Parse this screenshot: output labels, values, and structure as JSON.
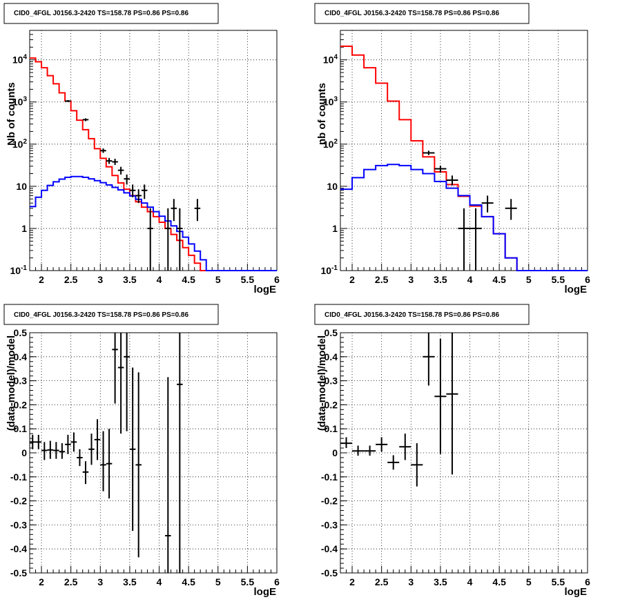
{
  "chart_data": [
    {
      "type": "histogram",
      "title": "CID0_4FGL J0156.3-2420 TS=158.78 PS=0.86 PS=0.86",
      "xlabel": "logE",
      "ylabel": "Nb of counts",
      "xlim": [
        1.8,
        6.0
      ],
      "ylim": [
        0.1,
        50000
      ],
      "log_y": true,
      "grid": true,
      "x_tick_labels": [
        "2",
        "2.5",
        "3",
        "3.5",
        "4",
        "4.5",
        "5",
        "5.5",
        "6"
      ],
      "y_tick_labels": [
        "10^-1",
        "1",
        "10",
        "10^2",
        "10^3",
        "10^4"
      ],
      "bin_edges": [
        1.8,
        1.9,
        2.0,
        2.1,
        2.2,
        2.3,
        2.4,
        2.5,
        2.6,
        2.7,
        2.8,
        2.9,
        3.0,
        3.1,
        3.2,
        3.3,
        3.4,
        3.5,
        3.6,
        3.7,
        3.8,
        3.9,
        4.0,
        4.1,
        4.2,
        4.3,
        4.4,
        4.5,
        4.6,
        4.7,
        4.8,
        4.9,
        5.0,
        5.1,
        5.2,
        5.3,
        5.4,
        5.5,
        5.6,
        5.7,
        5.8,
        5.9,
        6.0
      ],
      "series": [
        {
          "color": "#ff0000",
          "values": [
            11000,
            9000,
            6500,
            4200,
            2700,
            1650,
            1050,
            620,
            370,
            220,
            135,
            78,
            46,
            29,
            18,
            12,
            8.5,
            6,
            4.3,
            3.2,
            2.5,
            1.9,
            1.4,
            1.0,
            0.72,
            0.52,
            0.35,
            0.23,
            0.15,
            0.1,
            0.1,
            0.1,
            0.1,
            0.1,
            0.1,
            0.1,
            0.1,
            0.1,
            0.1,
            0.1,
            0.1,
            0.1
          ]
        },
        {
          "color": "#0000ff",
          "values": [
            3.3,
            5.5,
            8,
            10.5,
            12.8,
            14.8,
            16.3,
            17,
            17,
            16.3,
            15,
            13.6,
            12.2,
            10.8,
            9.4,
            8.2,
            7,
            5.9,
            4.9,
            4.0,
            3.2,
            2.5,
            1.95,
            1.5,
            1.15,
            0.85,
            0.62,
            0.43,
            0.29,
            0.18,
            0.1,
            0.1,
            0.1,
            0.1,
            0.1,
            0.1,
            0.1,
            0.1,
            0.1,
            0.1,
            0.1,
            0.1
          ]
        }
      ],
      "data_points": [
        {
          "x": 2.45,
          "y": 1050,
          "lo": 1000,
          "hi": 1110
        },
        {
          "x": 2.75,
          "y": 380,
          "lo": 350,
          "hi": 410
        },
        {
          "x": 3.05,
          "y": 70,
          "lo": 62,
          "hi": 79
        },
        {
          "x": 3.15,
          "y": 40,
          "lo": 34,
          "hi": 47
        },
        {
          "x": 3.25,
          "y": 38,
          "lo": 32,
          "hi": 45
        },
        {
          "x": 3.35,
          "y": 24,
          "lo": 19,
          "hi": 29
        },
        {
          "x": 3.45,
          "y": 15,
          "lo": 11,
          "hi": 19
        },
        {
          "x": 3.55,
          "y": 8,
          "lo": 5.5,
          "hi": 11
        },
        {
          "x": 3.65,
          "y": 6,
          "lo": 4,
          "hi": 8.5
        },
        {
          "x": 3.75,
          "y": 8,
          "lo": 5,
          "hi": 11
        },
        {
          "x": 3.85,
          "y": 1,
          "lo": 0.1,
          "hi": 3
        },
        {
          "x": 4.15,
          "y": 1,
          "lo": 0.1,
          "hi": 3
        },
        {
          "x": 4.25,
          "y": 3,
          "lo": 1.5,
          "hi": 5
        },
        {
          "x": 4.35,
          "y": 1,
          "lo": 0.1,
          "hi": 3
        },
        {
          "x": 4.65,
          "y": 3,
          "lo": 1.5,
          "hi": 5
        }
      ]
    },
    {
      "type": "histogram",
      "title": "CID0_4FGL J0156.3-2420 TS=158.78 PS=0.86 PS=0.86",
      "xlabel": "logE",
      "ylabel": "nb of counts",
      "xlim": [
        1.8,
        6.0
      ],
      "ylim": [
        0.1,
        50000
      ],
      "log_y": true,
      "grid": true,
      "x_tick_labels": [
        "2",
        "2.5",
        "3",
        "3.5",
        "4",
        "4.5",
        "5",
        "5.5",
        "6"
      ],
      "y_tick_labels": [
        "10^-1",
        "1",
        "10",
        "10^2",
        "10^3",
        "10^4"
      ],
      "bin_edges": [
        1.8,
        2.0,
        2.2,
        2.4,
        2.6,
        2.8,
        3.0,
        3.2,
        3.4,
        3.6,
        3.8,
        4.0,
        4.2,
        4.4,
        4.6,
        4.8,
        5.0,
        5.2,
        5.4,
        5.6,
        5.8,
        6.0
      ],
      "series": [
        {
          "color": "#ff0000",
          "values": [
            21000,
            13000,
            6500,
            2800,
            1050,
            380,
            120,
            50,
            22,
            11,
            5.8,
            3.4,
            1.9,
            0.75,
            0.2,
            0.1,
            0.1,
            0.1,
            0.1,
            0.1,
            0.1
          ]
        },
        {
          "color": "#0000ff",
          "values": [
            8.5,
            16,
            25,
            31,
            33,
            31,
            25,
            20,
            13,
            9,
            6,
            3.6,
            1.9,
            0.75,
            0.2,
            0.1,
            0.1,
            0.1,
            0.1,
            0.1,
            0.1
          ]
        }
      ],
      "data_points": [
        {
          "x": 3.3,
          "y": 62,
          "lo": 55,
          "hi": 70
        },
        {
          "x": 3.5,
          "y": 26,
          "lo": 21,
          "hi": 31
        },
        {
          "x": 3.7,
          "y": 14,
          "lo": 10.5,
          "hi": 18
        },
        {
          "x": 3.9,
          "y": 1,
          "lo": 0.1,
          "hi": 3
        },
        {
          "x": 4.1,
          "y": 1,
          "lo": 0.1,
          "hi": 3
        },
        {
          "x": 4.3,
          "y": 4,
          "lo": 2.4,
          "hi": 6
        },
        {
          "x": 4.7,
          "y": 3,
          "lo": 1.6,
          "hi": 5
        }
      ]
    },
    {
      "type": "scatter",
      "title": "CID0_4FGL J0156.3-2420 TS=158.78 PS=0.86 PS=0.86",
      "xlabel": "logE",
      "ylabel": "(data-model)/model",
      "xlim": [
        1.8,
        6.0
      ],
      "ylim": [
        -0.5,
        0.5
      ],
      "grid": true,
      "x_tick_labels": [
        "2",
        "2.5",
        "3",
        "3.5",
        "4",
        "4.5",
        "5",
        "5.5",
        "6"
      ],
      "y_tick_labels": [
        "-0.5",
        "-0.4",
        "-0.3",
        "-0.2",
        "-0.1",
        "0",
        "0.1",
        "0.2",
        "0.3",
        "0.4",
        "0.5"
      ],
      "y_ticks": [
        -0.5,
        -0.4,
        -0.3,
        -0.2,
        -0.1,
        0,
        0.1,
        0.2,
        0.3,
        0.4,
        0.5
      ],
      "bin_width": 0.1,
      "data_points": [
        {
          "x": 1.85,
          "y": 0.045,
          "lo": 0.015,
          "hi": 0.075
        },
        {
          "x": 1.95,
          "y": 0.045,
          "lo": 0.015,
          "hi": 0.075
        },
        {
          "x": 2.05,
          "y": 0.01,
          "lo": -0.03,
          "hi": 0.045
        },
        {
          "x": 2.15,
          "y": 0.012,
          "lo": -0.025,
          "hi": 0.05
        },
        {
          "x": 2.25,
          "y": 0.01,
          "lo": -0.025,
          "hi": 0.045
        },
        {
          "x": 2.35,
          "y": 0.005,
          "lo": -0.025,
          "hi": 0.04
        },
        {
          "x": 2.45,
          "y": 0.035,
          "lo": -0.005,
          "hi": 0.075
        },
        {
          "x": 2.55,
          "y": 0.045,
          "lo": 0.005,
          "hi": 0.085
        },
        {
          "x": 2.65,
          "y": -0.02,
          "lo": -0.055,
          "hi": 0.015
        },
        {
          "x": 2.75,
          "y": -0.08,
          "lo": -0.13,
          "hi": -0.035
        },
        {
          "x": 2.85,
          "y": 0.015,
          "lo": -0.05,
          "hi": 0.08
        },
        {
          "x": 2.95,
          "y": 0.055,
          "lo": -0.03,
          "hi": 0.14
        },
        {
          "x": 3.05,
          "y": -0.05,
          "lo": -0.16,
          "hi": 0.09
        },
        {
          "x": 3.15,
          "y": -0.045,
          "lo": -0.19,
          "hi": 0.1
        },
        {
          "x": 3.25,
          "y": 0.43,
          "lo": 0.205,
          "hi": 0.5
        },
        {
          "x": 3.35,
          "y": 0.355,
          "lo": 0.08,
          "hi": 0.5
        },
        {
          "x": 3.45,
          "y": 0.4,
          "lo": 0.09,
          "hi": 0.5
        },
        {
          "x": 3.55,
          "y": 0.015,
          "lo": -0.325,
          "hi": 0.355
        },
        {
          "x": 3.65,
          "y": -0.05,
          "lo": -0.435,
          "hi": 0.335
        },
        {
          "x": 4.15,
          "y": -0.345,
          "lo": -0.5,
          "hi": 0.315
        },
        {
          "x": 4.35,
          "y": 0.285,
          "lo": -0.5,
          "hi": 0.5
        }
      ]
    },
    {
      "type": "scatter",
      "title": "CID0_4FGL J0156.3-2420 TS=158.78 PS=0.86 PS=0.86",
      "xlabel": "logE",
      "ylabel": "(data-model)/model",
      "xlim": [
        1.8,
        6.0
      ],
      "ylim": [
        -0.5,
        0.5
      ],
      "grid": true,
      "x_tick_labels": [
        "2",
        "2.5",
        "3",
        "3.5",
        "4",
        "4.5",
        "5",
        "5.5",
        "6"
      ],
      "y_tick_labels": [
        "-0.5",
        "-0.4",
        "-0.3",
        "-0.2",
        "-0.1",
        "0",
        "0.1",
        "0.2",
        "0.3",
        "0.4",
        "0.5"
      ],
      "y_ticks": [
        -0.5,
        -0.4,
        -0.3,
        -0.2,
        -0.1,
        0,
        0.1,
        0.2,
        0.3,
        0.4,
        0.5
      ],
      "bin_width": 0.2,
      "data_points": [
        {
          "x": 1.9,
          "y": 0.04,
          "lo": 0.02,
          "hi": 0.065
        },
        {
          "x": 2.1,
          "y": 0.008,
          "lo": -0.012,
          "hi": 0.03
        },
        {
          "x": 2.3,
          "y": 0.008,
          "lo": -0.012,
          "hi": 0.03
        },
        {
          "x": 2.5,
          "y": 0.035,
          "lo": 0.005,
          "hi": 0.065
        },
        {
          "x": 2.7,
          "y": -0.04,
          "lo": -0.07,
          "hi": -0.01
        },
        {
          "x": 2.9,
          "y": 0.025,
          "lo": -0.03,
          "hi": 0.08
        },
        {
          "x": 3.1,
          "y": -0.05,
          "lo": -0.14,
          "hi": 0.04
        },
        {
          "x": 3.3,
          "y": 0.4,
          "lo": 0.28,
          "hi": 0.5
        },
        {
          "x": 3.5,
          "y": 0.235,
          "lo": -0.005,
          "hi": 0.475
        },
        {
          "x": 3.7,
          "y": 0.245,
          "lo": -0.09,
          "hi": 0.5
        }
      ]
    }
  ]
}
